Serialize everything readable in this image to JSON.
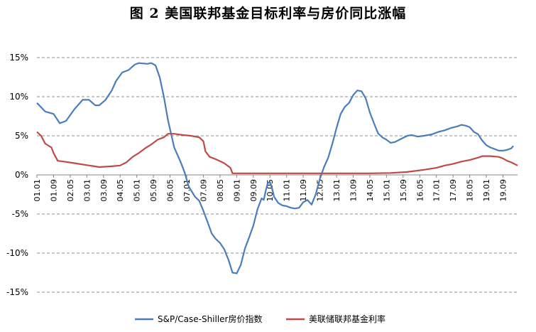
{
  "chart_data": {
    "type": "line",
    "title": "图 2 美国联邦基金目标利率与房价同比涨幅",
    "xlabel": "",
    "ylabel": "",
    "ylim": [
      -15,
      15
    ],
    "y_ticks": [
      "15%",
      "10%",
      "5%",
      "0%",
      "-5%",
      "-10%",
      "-15%"
    ],
    "y_tick_values": [
      15,
      10,
      5,
      0,
      -5,
      -10,
      -15
    ],
    "x_ticks": [
      "01.01",
      "01.09",
      "02.05",
      "03.01",
      "03.09",
      "04.05",
      "05.01",
      "05.09",
      "06.05",
      "07.01",
      "07.09",
      "08.05",
      "09.01",
      "09.09",
      "10.05",
      "11.01",
      "11.09",
      "12.05",
      "13.01",
      "13.09",
      "14.05",
      "15.01",
      "15.09",
      "16.05",
      "17.01",
      "17.09",
      "18.05",
      "19.01",
      "19.09"
    ],
    "x_tick_months": [
      0,
      8,
      16,
      24,
      32,
      40,
      48,
      56,
      64,
      72,
      80,
      88,
      96,
      104,
      112,
      120,
      128,
      136,
      144,
      152,
      160,
      168,
      176,
      184,
      192,
      200,
      208,
      216,
      224
    ],
    "x_range_months": [
      0,
      231
    ],
    "grid": true,
    "legend_position": "bottom",
    "series": [
      {
        "name": "S&P/Case-Shiller房价指数",
        "color": "#4a7ebb",
        "points": [
          [
            0,
            9.2
          ],
          [
            4,
            8.1
          ],
          [
            8,
            7.8
          ],
          [
            11,
            6.6
          ],
          [
            14,
            6.9
          ],
          [
            18,
            8.4
          ],
          [
            22,
            9.6
          ],
          [
            25,
            9.6
          ],
          [
            28,
            8.9
          ],
          [
            30,
            8.9
          ],
          [
            33,
            9.6
          ],
          [
            36,
            10.8
          ],
          [
            38,
            12.0
          ],
          [
            41,
            13.1
          ],
          [
            44,
            13.4
          ],
          [
            47,
            14.1
          ],
          [
            49,
            14.3
          ],
          [
            53,
            14.2
          ],
          [
            55,
            14.3
          ],
          [
            57,
            14.0
          ],
          [
            59,
            12.5
          ],
          [
            61,
            10.0
          ],
          [
            63,
            7.0
          ],
          [
            66,
            3.5
          ],
          [
            69,
            1.7
          ],
          [
            71,
            0.3
          ],
          [
            73,
            -1.5
          ],
          [
            76,
            -2.8
          ],
          [
            78,
            -3.3
          ],
          [
            80,
            -4.6
          ],
          [
            82,
            -6.0
          ],
          [
            84,
            -7.5
          ],
          [
            86,
            -8.2
          ],
          [
            88,
            -8.7
          ],
          [
            90,
            -9.5
          ],
          [
            92,
            -10.8
          ],
          [
            94,
            -12.5
          ],
          [
            96,
            -12.6
          ],
          [
            98,
            -11.5
          ],
          [
            100,
            -9.4
          ],
          [
            102,
            -8.0
          ],
          [
            104,
            -6.5
          ],
          [
            106,
            -4.4
          ],
          [
            108,
            -3.0
          ],
          [
            109,
            -3.2
          ],
          [
            110,
            -2.0
          ],
          [
            111,
            -1.0
          ],
          [
            112,
            -0.9
          ],
          [
            113,
            -1.7
          ],
          [
            114,
            -2.8
          ],
          [
            116,
            -3.6
          ],
          [
            118,
            -3.9
          ],
          [
            120,
            -4.0
          ],
          [
            122,
            -4.2
          ],
          [
            124,
            -4.3
          ],
          [
            126,
            -4.2
          ],
          [
            128,
            -3.5
          ],
          [
            130,
            -3.2
          ],
          [
            132,
            -3.8
          ],
          [
            134,
            -2.5
          ],
          [
            136,
            -0.5
          ],
          [
            138,
            1.0
          ],
          [
            140,
            2.2
          ],
          [
            142,
            4.0
          ],
          [
            144,
            6.0
          ],
          [
            146,
            7.8
          ],
          [
            148,
            8.7
          ],
          [
            150,
            9.2
          ],
          [
            152,
            10.2
          ],
          [
            154,
            10.8
          ],
          [
            156,
            10.7
          ],
          [
            158,
            9.8
          ],
          [
            160,
            8.0
          ],
          [
            162,
            6.6
          ],
          [
            164,
            5.3
          ],
          [
            166,
            4.8
          ],
          [
            168,
            4.5
          ],
          [
            170,
            4.1
          ],
          [
            172,
            4.2
          ],
          [
            175,
            4.6
          ],
          [
            178,
            5.0
          ],
          [
            180,
            5.1
          ],
          [
            183,
            4.9
          ],
          [
            186,
            5.0
          ],
          [
            190,
            5.2
          ],
          [
            193,
            5.5
          ],
          [
            196,
            5.7
          ],
          [
            199,
            6.0
          ],
          [
            202,
            6.2
          ],
          [
            204,
            6.4
          ],
          [
            206,
            6.3
          ],
          [
            208,
            6.1
          ],
          [
            210,
            5.5
          ],
          [
            212,
            5.2
          ],
          [
            214,
            4.4
          ],
          [
            216,
            3.8
          ],
          [
            218,
            3.5
          ],
          [
            220,
            3.3
          ],
          [
            222,
            3.1
          ],
          [
            224,
            3.1
          ],
          [
            226,
            3.2
          ],
          [
            228,
            3.4
          ],
          [
            229,
            3.7
          ]
        ]
      },
      {
        "name": "美联储联邦基金利率",
        "color": "#be4b48",
        "points": [
          [
            0,
            5.5
          ],
          [
            2,
            5.0
          ],
          [
            4,
            4.0
          ],
          [
            7,
            3.5
          ],
          [
            8,
            2.8
          ],
          [
            10,
            1.8
          ],
          [
            13,
            1.7
          ],
          [
            18,
            1.5
          ],
          [
            24,
            1.25
          ],
          [
            30,
            1.0
          ],
          [
            36,
            1.1
          ],
          [
            40,
            1.2
          ],
          [
            43,
            1.6
          ],
          [
            46,
            2.3
          ],
          [
            49,
            2.8
          ],
          [
            52,
            3.4
          ],
          [
            55,
            3.9
          ],
          [
            58,
            4.5
          ],
          [
            61,
            4.8
          ],
          [
            63,
            5.25
          ],
          [
            66,
            5.25
          ],
          [
            70,
            5.1
          ],
          [
            74,
            5.0
          ],
          [
            78,
            4.8
          ],
          [
            80,
            4.3
          ],
          [
            81,
            3.0
          ],
          [
            83,
            2.3
          ],
          [
            86,
            2.0
          ],
          [
            90,
            1.5
          ],
          [
            93,
            0.9
          ],
          [
            94,
            0.2
          ],
          [
            100,
            0.2
          ],
          [
            110,
            0.2
          ],
          [
            120,
            0.2
          ],
          [
            130,
            0.2
          ],
          [
            140,
            0.2
          ],
          [
            150,
            0.2
          ],
          [
            160,
            0.2
          ],
          [
            170,
            0.25
          ],
          [
            178,
            0.37
          ],
          [
            186,
            0.65
          ],
          [
            192,
            0.9
          ],
          [
            196,
            1.2
          ],
          [
            200,
            1.4
          ],
          [
            204,
            1.7
          ],
          [
            208,
            1.9
          ],
          [
            212,
            2.2
          ],
          [
            214,
            2.4
          ],
          [
            218,
            2.4
          ],
          [
            222,
            2.3
          ],
          [
            224,
            2.1
          ],
          [
            226,
            1.8
          ],
          [
            228,
            1.6
          ],
          [
            231,
            1.2
          ]
        ]
      }
    ]
  }
}
